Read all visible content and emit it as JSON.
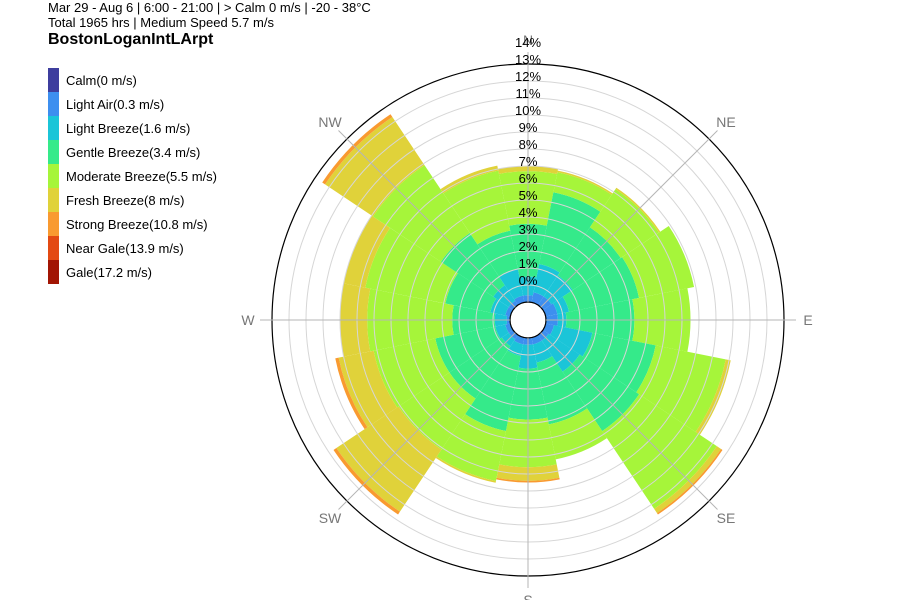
{
  "header": {
    "line1": "Mar 29 - Aug 6 | 6:00 - 21:00 | > Calm 0 m/s | -20 - 38°C",
    "line2": "Total 1965 hrs | Medium Speed 5.7 m/s",
    "title": "BostonLoganIntLArpt"
  },
  "legend": [
    {
      "label": "Calm(0 m/s)",
      "color": "#3e3e9e"
    },
    {
      "label": "Light Air(0.3 m/s)",
      "color": "#3d8fef"
    },
    {
      "label": "Light Breeze(1.6 m/s)",
      "color": "#1bc5d8"
    },
    {
      "label": "Gentle Breeze(3.4 m/s)",
      "color": "#35ea8a"
    },
    {
      "label": "Moderate Breeze(5.5 m/s)",
      "color": "#a6f53a"
    },
    {
      "label": "Fresh Breeze(8 m/s)",
      "color": "#e0d23a"
    },
    {
      "label": "Strong Breeze(10.8 m/s)",
      "color": "#f99a30"
    },
    {
      "label": "Near Gale(13.9 m/s)",
      "color": "#e34a13"
    },
    {
      "label": "Gale(17.2 m/s)",
      "color": "#a21504"
    }
  ],
  "chart_data": {
    "type": "windrose",
    "rmax": 14,
    "radial_ticks": [
      "0%",
      "1%",
      "2%",
      "3%",
      "4%",
      "5%",
      "6%",
      "7%",
      "8%",
      "9%",
      "10%",
      "11%",
      "12%",
      "13%",
      "14%"
    ],
    "directions": [
      "N",
      "NE",
      "E",
      "SE",
      "S",
      "SW",
      "W",
      "NW"
    ],
    "sectors": [
      {
        "dir": 0,
        "cum": [
          0,
          0.4,
          1.5,
          4.6,
          7.7,
          8.0
        ]
      },
      {
        "dir": 22.5,
        "cum": [
          0,
          0.6,
          2.3,
          6.6,
          7.8,
          7.9
        ]
      },
      {
        "dir": 45,
        "cum": [
          0,
          0.6,
          2.1,
          5.5,
          8.2,
          8.3
        ]
      },
      {
        "dir": 67.5,
        "cum": [
          0,
          0.7,
          1.4,
          5.6,
          8.9
        ]
      },
      {
        "dir": 90,
        "cum": [
          0,
          0.7,
          1.2,
          5.2,
          8.5
        ]
      },
      {
        "dir": 112.5,
        "cum": [
          0,
          0.5,
          2.8,
          6.6,
          10.8,
          11.1
        ]
      },
      {
        "dir": 135,
        "cum": [
          0,
          0.4,
          2.6,
          6.8,
          12.3,
          12.6,
          12.7
        ]
      },
      {
        "dir": 157.5,
        "cum": [
          0,
          0.4,
          1.5,
          5.2,
          7.3
        ]
      },
      {
        "dir": 180,
        "cum": [
          0,
          0.4,
          1.8,
          4.8,
          7.6,
          8.4,
          8.5
        ]
      },
      {
        "dir": 202.5,
        "cum": [
          0,
          0.4,
          1.1,
          5.6,
          8.6,
          8.7
        ]
      },
      {
        "dir": 225,
        "cum": [
          0,
          0.3,
          0.8,
          4.5,
          8.1,
          12.5,
          12.7
        ]
      },
      {
        "dir": 247.5,
        "cum": [
          0,
          0.3,
          0.9,
          4.5,
          8.2,
          10.3,
          10.5
        ]
      },
      {
        "dir": 270,
        "cum": [
          0,
          0.2,
          0.9,
          3.4,
          8.4,
          10.0
        ]
      },
      {
        "dir": 292.5,
        "cum": [
          0,
          0.3,
          1.2,
          3.9,
          8.7,
          10.0
        ]
      },
      {
        "dir": 315,
        "cum": [
          0,
          0.3,
          1.4,
          5.1,
          9.9,
          13.3,
          13.5
        ]
      },
      {
        "dir": 337.5,
        "cum": [
          0,
          0.4,
          2.0,
          4.3,
          7.9,
          8.2
        ]
      }
    ]
  }
}
